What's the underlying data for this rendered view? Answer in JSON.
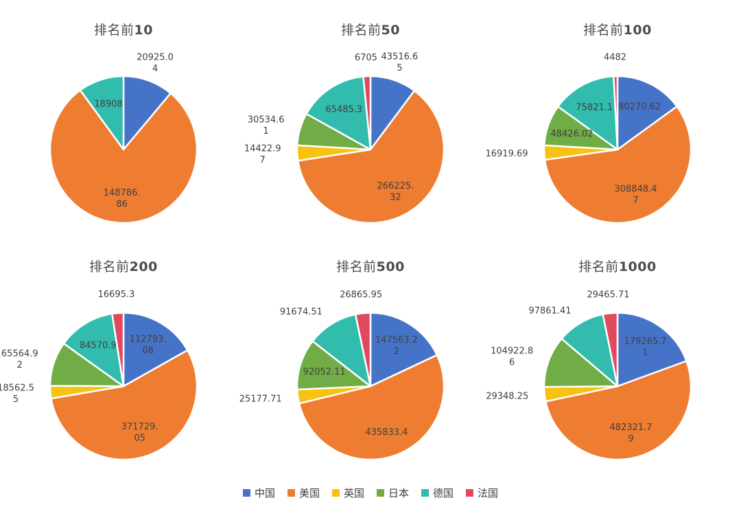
{
  "palette": {
    "中国": "#4573C7",
    "美国": "#EE7D31",
    "英国": "#F7C211",
    "日本": "#70AD47",
    "德国": "#31BCAD",
    "法国": "#E0495F"
  },
  "legend": {
    "position": "bottom",
    "items": [
      {
        "label": "中国",
        "color": "#4573C7"
      },
      {
        "label": "美国",
        "color": "#EE7D31"
      },
      {
        "label": "英国",
        "color": "#F7C211"
      },
      {
        "label": "日本",
        "color": "#70AD47"
      },
      {
        "label": "德国",
        "color": "#31BCAD"
      },
      {
        "label": "法国",
        "color": "#E0495F"
      }
    ]
  },
  "chart_data": [
    {
      "type": "pie",
      "title_full": "排名前10",
      "title_prefix": "排名前",
      "title_number": "10",
      "categories": [
        "中国",
        "美国",
        "英国",
        "日本",
        "德国",
        "法国"
      ],
      "slices": [
        {
          "category": "中国",
          "value": 20925.04,
          "label_lines": [
            "20925.0",
            "4"
          ],
          "label_inside": false
        },
        {
          "category": "美国",
          "value": 148786.86,
          "label_lines": [
            "148786.",
            "86"
          ],
          "label_inside": true
        },
        {
          "category": "英国",
          "value": 0,
          "label_lines": [],
          "label_inside": false
        },
        {
          "category": "日本",
          "value": 0,
          "label_lines": [],
          "label_inside": false
        },
        {
          "category": "德国",
          "value": 18908,
          "label_lines": [
            "18908"
          ],
          "label_inside": true
        },
        {
          "category": "法国",
          "value": 0,
          "label_lines": [],
          "label_inside": false
        }
      ]
    },
    {
      "type": "pie",
      "title_full": "排名前50",
      "title_prefix": "排名前",
      "title_number": "50",
      "categories": [
        "中国",
        "美国",
        "英国",
        "日本",
        "德国",
        "法国"
      ],
      "slices": [
        {
          "category": "中国",
          "value": 43516.65,
          "label_lines": [
            "43516.6",
            "5"
          ],
          "label_inside": false
        },
        {
          "category": "美国",
          "value": 266225.32,
          "label_lines": [
            "266225.",
            "32"
          ],
          "label_inside": true
        },
        {
          "category": "英国",
          "value": 14422.97,
          "label_lines": [
            "14422.9",
            "7"
          ],
          "label_inside": false
        },
        {
          "category": "日本",
          "value": 30534.61,
          "label_lines": [
            "30534.6",
            "1"
          ],
          "label_inside": false
        },
        {
          "category": "德国",
          "value": 65485.3,
          "label_lines": [
            "65485.3"
          ],
          "label_inside": true
        },
        {
          "category": "法国",
          "value": 6705,
          "label_lines": [
            "6705"
          ],
          "label_inside": false
        }
      ]
    },
    {
      "type": "pie",
      "title_full": "排名前100",
      "title_prefix": "排名前",
      "title_number": "100",
      "categories": [
        "中国",
        "美国",
        "英国",
        "日本",
        "德国",
        "法国"
      ],
      "slices": [
        {
          "category": "中国",
          "value": 80270.62,
          "label_lines": [
            "80270.62"
          ],
          "label_inside": true
        },
        {
          "category": "美国",
          "value": 308848.47,
          "label_lines": [
            "308848.4",
            "7"
          ],
          "label_inside": true
        },
        {
          "category": "英国",
          "value": 16919.69,
          "label_lines": [
            "16919.69"
          ],
          "label_inside": false
        },
        {
          "category": "日本",
          "value": 48426.02,
          "label_lines": [
            "48426.02"
          ],
          "label_inside": true
        },
        {
          "category": "德国",
          "value": 75821.1,
          "label_lines": [
            "75821.1"
          ],
          "label_inside": true
        },
        {
          "category": "法国",
          "value": 4482,
          "label_lines": [
            "4482"
          ],
          "label_inside": false
        }
      ]
    },
    {
      "type": "pie",
      "title_full": "排名前200",
      "title_prefix": "排名前",
      "title_number": "200",
      "categories": [
        "中国",
        "美国",
        "英国",
        "日本",
        "德国",
        "法国"
      ],
      "slices": [
        {
          "category": "中国",
          "value": 112793.08,
          "label_lines": [
            "112793.",
            "08"
          ],
          "label_inside": true
        },
        {
          "category": "美国",
          "value": 371729.05,
          "label_lines": [
            "371729.",
            "05"
          ],
          "label_inside": true
        },
        {
          "category": "英国",
          "value": 18562.55,
          "label_lines": [
            "18562.5",
            "5"
          ],
          "label_inside": false
        },
        {
          "category": "日本",
          "value": 65564.92,
          "label_lines": [
            "65564.9",
            "2"
          ],
          "label_inside": false
        },
        {
          "category": "德国",
          "value": 84570.9,
          "label_lines": [
            "84570.9"
          ],
          "label_inside": true
        },
        {
          "category": "法国",
          "value": 16695.3,
          "label_lines": [
            "16695.3"
          ],
          "label_inside": false
        }
      ]
    },
    {
      "type": "pie",
      "title_full": "排名前500",
      "title_prefix": "排名前",
      "title_number": "500",
      "categories": [
        "中国",
        "美国",
        "英国",
        "日本",
        "德国",
        "法国"
      ],
      "slices": [
        {
          "category": "中国",
          "value": 147563.22,
          "label_lines": [
            "147563.2",
            "2"
          ],
          "label_inside": true
        },
        {
          "category": "美国",
          "value": 435833.4,
          "label_lines": [
            "435833.4"
          ],
          "label_inside": true
        },
        {
          "category": "英国",
          "value": 25177.71,
          "label_lines": [
            "25177.71"
          ],
          "label_inside": false
        },
        {
          "category": "日本",
          "value": 92052.11,
          "label_lines": [
            "92052.11"
          ],
          "label_inside": true
        },
        {
          "category": "德国",
          "value": 91674.51,
          "label_lines": [
            "91674.51"
          ],
          "label_inside": false
        },
        {
          "category": "法国",
          "value": 26865.95,
          "label_lines": [
            "26865.95"
          ],
          "label_inside": false
        }
      ]
    },
    {
      "type": "pie",
      "title_full": "排名前1000",
      "title_prefix": "排名前",
      "title_number": "1000",
      "categories": [
        "中国",
        "美国",
        "英国",
        "日本",
        "德国",
        "法国"
      ],
      "slices": [
        {
          "category": "中国",
          "value": 179265.71,
          "label_lines": [
            "179265.7",
            "1"
          ],
          "label_inside": true
        },
        {
          "category": "美国",
          "value": 482321.79,
          "label_lines": [
            "482321.7",
            "9"
          ],
          "label_inside": true
        },
        {
          "category": "英国",
          "value": 29348.25,
          "label_lines": [
            "29348.25"
          ],
          "label_inside": false
        },
        {
          "category": "日本",
          "value": 104922.86,
          "label_lines": [
            "104922.8",
            "6"
          ],
          "label_inside": false
        },
        {
          "category": "德国",
          "value": 97861.41,
          "label_lines": [
            "97861.41"
          ],
          "label_inside": false
        },
        {
          "category": "法国",
          "value": 29465.71,
          "label_lines": [
            "29465.71"
          ],
          "label_inside": false
        }
      ]
    }
  ]
}
